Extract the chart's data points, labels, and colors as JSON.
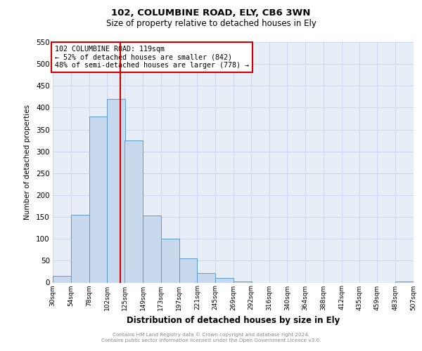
{
  "title1": "102, COLUMBINE ROAD, ELY, CB6 3WN",
  "title2": "Size of property relative to detached houses in Ely",
  "xlabel": "Distribution of detached houses by size in Ely",
  "ylabel": "Number of detached properties",
  "bar_left_edges": [
    30,
    54,
    78,
    102,
    125,
    149,
    173,
    197,
    221,
    245,
    269,
    292,
    316,
    340,
    364,
    388,
    412,
    435,
    459,
    483
  ],
  "bar_heights": [
    15,
    155,
    380,
    420,
    325,
    153,
    100,
    55,
    21,
    10,
    3,
    0,
    0,
    0,
    0,
    0,
    0,
    0,
    0,
    3
  ],
  "bin_width": 24,
  "bar_facecolor": "#c9d9ed",
  "bar_edgecolor": "#5b9bd5",
  "grid_color": "#c8d4e8",
  "bg_color": "#e8eef7",
  "vline_x": 119,
  "vline_color": "#cc0000",
  "annotation_line1": "102 COLUMBINE ROAD: 119sqm",
  "annotation_line2": "← 52% of detached houses are smaller (842)",
  "annotation_line3": "48% of semi-detached houses are larger (778) →",
  "annotation_box_color": "#cc0000",
  "ylim": [
    0,
    550
  ],
  "yticks": [
    0,
    50,
    100,
    150,
    200,
    250,
    300,
    350,
    400,
    450,
    500,
    550
  ],
  "xtick_labels": [
    "30sqm",
    "54sqm",
    "78sqm",
    "102sqm",
    "125sqm",
    "149sqm",
    "173sqm",
    "197sqm",
    "221sqm",
    "245sqm",
    "269sqm",
    "292sqm",
    "316sqm",
    "340sqm",
    "364sqm",
    "388sqm",
    "412sqm",
    "435sqm",
    "459sqm",
    "483sqm",
    "507sqm"
  ],
  "xtick_positions": [
    30,
    54,
    78,
    102,
    125,
    149,
    173,
    197,
    221,
    245,
    269,
    292,
    316,
    340,
    364,
    388,
    412,
    435,
    459,
    483,
    507
  ],
  "footer_line1": "Contains HM Land Registry data © Crown copyright and database right 2024.",
  "footer_line2": "Contains public sector information licensed under the Open Government Licence v3.0."
}
